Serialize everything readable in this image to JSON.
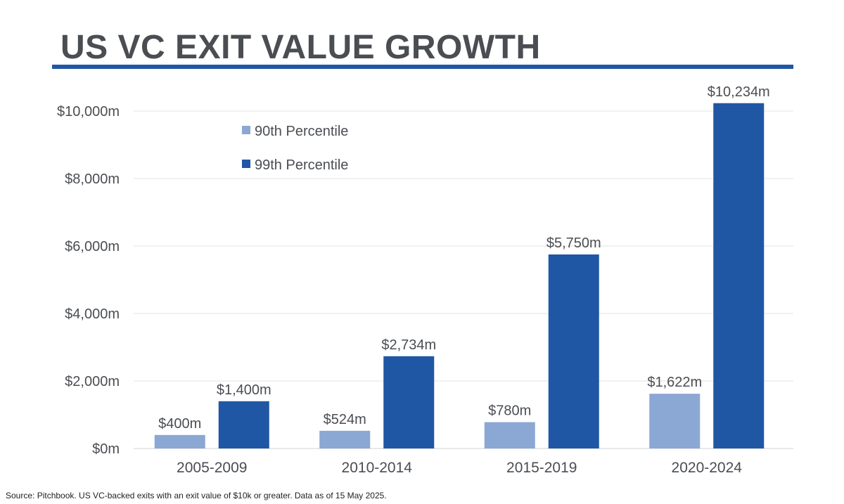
{
  "title": "US VC EXIT VALUE GROWTH",
  "source": "Source: Pitchbook.  US VC-backed exits with an exit value of $10k or greater.  Data as of 15 May 2025.",
  "colors": {
    "title_rule": "#1f57a4",
    "p90": "#8ba7d3",
    "p99": "#1f57a4",
    "grid": "#e3e3e3",
    "text": "#4a4d52"
  },
  "chart_data": {
    "type": "bar",
    "title": "US VC EXIT VALUE GROWTH",
    "xlabel": "",
    "ylabel": "",
    "categories": [
      "2005-2009",
      "2010-2014",
      "2015-2019",
      "2020-2024"
    ],
    "series": [
      {
        "name": "90th Percentile",
        "values": [
          400,
          524,
          780,
          1622
        ],
        "labels": [
          "$400m",
          "$524m",
          "$780m",
          "$1,622m"
        ]
      },
      {
        "name": "99th Percentile",
        "values": [
          1400,
          2734,
          5750,
          10234
        ],
        "labels": [
          "$1,400m",
          "$2,734m",
          "$5,750m",
          "$10,234m"
        ]
      }
    ],
    "ylim": [
      0,
      10000
    ],
    "yticks": [
      0,
      2000,
      4000,
      6000,
      8000,
      10000
    ],
    "ytick_labels": [
      "$0m",
      "$2,000m",
      "$4,000m",
      "$6,000m",
      "$8,000m",
      "$10,000m"
    ],
    "grid": true,
    "legend_position": "top-left"
  }
}
